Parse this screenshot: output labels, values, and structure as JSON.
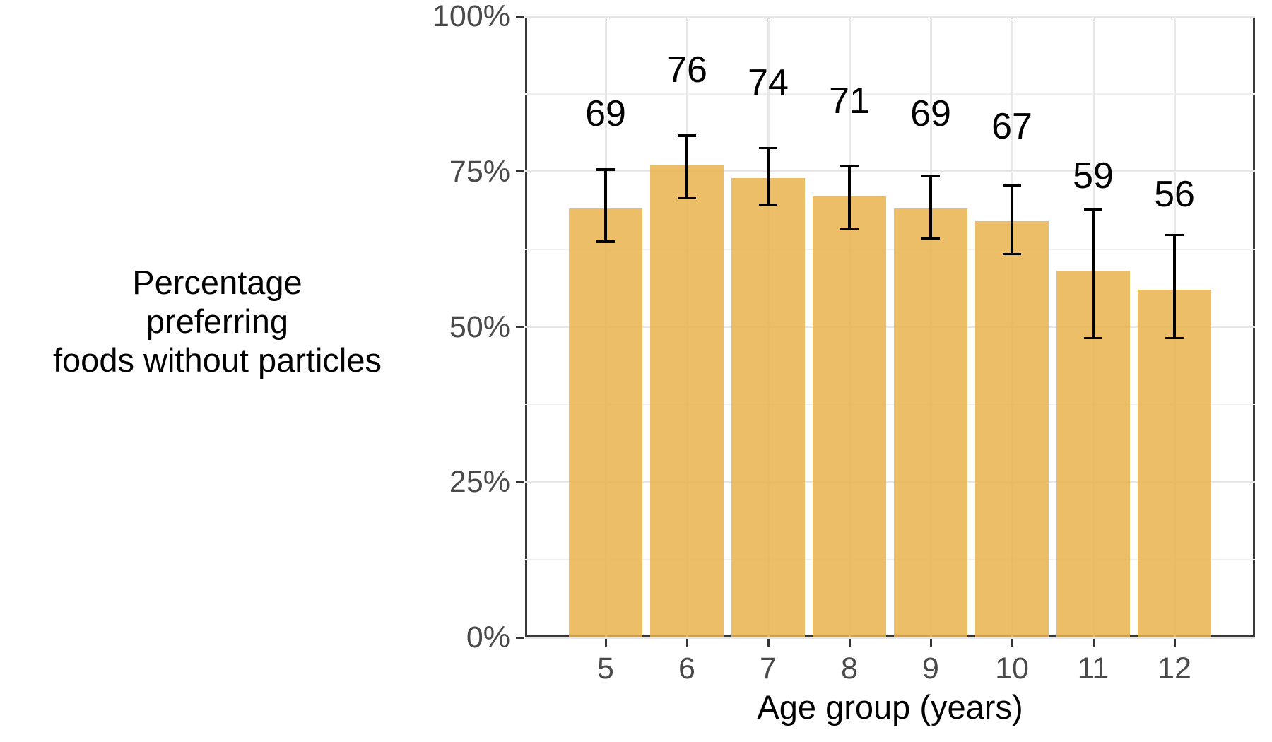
{
  "chart_data": {
    "type": "bar",
    "title": "",
    "xlabel": "Age group (years)",
    "ylabel": "Percentage preferring foods without particles",
    "ylabel_lines": [
      "Percentage",
      "preferring",
      "foods without particles"
    ],
    "categories": [
      "5",
      "6",
      "7",
      "8",
      "9",
      "10",
      "11",
      "12"
    ],
    "values": [
      69,
      76,
      74,
      71,
      69,
      67,
      59,
      56
    ],
    "bar_labels": [
      "69",
      "76",
      "74",
      "71",
      "69",
      "67",
      "59",
      "56"
    ],
    "error_low": [
      63.5,
      70.5,
      69.5,
      65.5,
      64,
      61.5,
      48,
      48
    ],
    "error_high": [
      75.5,
      81,
      79,
      76,
      74.5,
      73,
      69,
      65
    ],
    "y_ticks": [
      "0%",
      "25%",
      "50%",
      "75%",
      "100%"
    ],
    "y_tick_values": [
      0,
      25,
      50,
      75,
      100
    ],
    "y_minor_values": [
      12.5,
      37.5,
      62.5,
      87.5
    ],
    "ylim": [
      0,
      100
    ],
    "grid": "horizontal major+minor, vertical major at category centers",
    "legend": "none",
    "colors": {
      "bar_fill": "#E7B34C",
      "bar_alpha": 0.85,
      "error_bar": "#000000",
      "axis_text": "#4A4A4A",
      "axis_title": "#000000",
      "panel_border": "#383838",
      "grid_major": "#E6E6E6",
      "grid_minor": "#F0F0F0",
      "background": "#FFFFFF"
    }
  }
}
